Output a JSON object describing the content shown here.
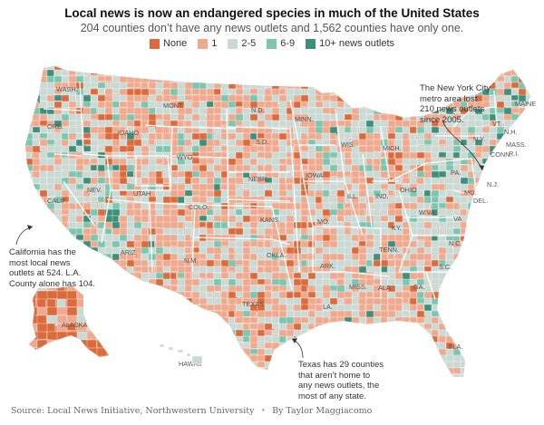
{
  "header": {
    "title": "Local news is now an endangered species in much of the United States",
    "subtitle": "204 counties don’t have any news outlets and 1,562 counties have only one."
  },
  "legend": [
    {
      "label": "None",
      "color": "#db6a3c"
    },
    {
      "label": "1",
      "color": "#eea98e"
    },
    {
      "label": "2-5",
      "color": "#c9d9d4"
    },
    {
      "label": "6-9",
      "color": "#7cc6b0"
    },
    {
      "label": "10+ news outlets",
      "color": "#3d8f7b"
    }
  ],
  "states": [
    "WASH.",
    "ORE.",
    "CALIF.",
    "NEV.",
    "IDAHO",
    "MONT.",
    "WYO.",
    "UTAH",
    "ARIZ.",
    "COLO.",
    "N.M.",
    "N.D.",
    "S.D.",
    "NEBR.",
    "KANS.",
    "OKLA.",
    "TEXAS",
    "MINN.",
    "IOWA",
    "MO.",
    "ARK.",
    "LA.",
    "WIS.",
    "ILL.",
    "MICH.",
    "IND.",
    "OHIO",
    "KY.",
    "TENN.",
    "MISS.",
    "ALA.",
    "GA.",
    "FLA.",
    "S.C.",
    "N.C.",
    "VA.",
    "W.VA.",
    "PA.",
    "N.Y.",
    "MD.",
    "N.J.",
    "DEL.",
    "CONN.",
    "R.I.",
    "MASS.",
    "VT.",
    "N.H.",
    "MAINE",
    "ALASKA",
    "HAWAII"
  ],
  "annotations": {
    "nyc": [
      "The New York City",
      "metro area lost",
      "210 news outlets",
      "since 2005."
    ],
    "california": [
      "California has the",
      "most local news",
      "outlets at 524. L.A.",
      "County alone has 104."
    ],
    "texas": [
      "Texas has 29 counties",
      "that aren’t home to",
      "any news outlets, the",
      "most of any state."
    ]
  },
  "footer": {
    "source": "Source: Local News Initiative, Northwestern University",
    "byline": "By Taylor Maggiacomo"
  }
}
